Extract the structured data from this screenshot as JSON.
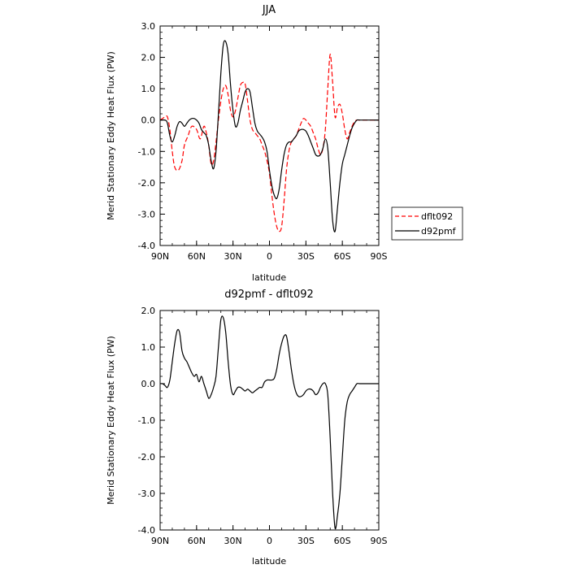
{
  "chart_data": [
    {
      "type": "line",
      "title": "JJA",
      "xlabel": "latitude",
      "ylabel": "Merid Stationary Eddy Heat Flux (PW)",
      "xlim": [
        90,
        -90
      ],
      "ylim": [
        -4.0,
        3.0
      ],
      "xticks": [
        {
          "v": 90,
          "label": "90N"
        },
        {
          "v": 60,
          "label": "60N"
        },
        {
          "v": 30,
          "label": "30N"
        },
        {
          "v": 0,
          "label": "0"
        },
        {
          "v": -30,
          "label": "30S"
        },
        {
          "v": -60,
          "label": "60S"
        },
        {
          "v": -90,
          "label": "90S"
        }
      ],
      "yticks": [
        {
          "v": 3.0,
          "label": "3.0"
        },
        {
          "v": 2.0,
          "label": "2.0"
        },
        {
          "v": 1.0,
          "label": "1.0"
        },
        {
          "v": 0.0,
          "label": "0.0"
        },
        {
          "v": -1.0,
          "label": "-1.0"
        },
        {
          "v": -2.0,
          "label": "-2.0"
        },
        {
          "v": -3.0,
          "label": "-3.0"
        },
        {
          "v": -4.0,
          "label": "-4.0"
        }
      ],
      "legend_position": "right",
      "series": [
        {
          "name": "dflt092",
          "color": "#ff0000",
          "dash": "dashed",
          "x": [
            90,
            86,
            84,
            82,
            80,
            78,
            75,
            72,
            70,
            67,
            64,
            60,
            57,
            54,
            52,
            50,
            48,
            46,
            44,
            42,
            40,
            38,
            36,
            34,
            32,
            30,
            28,
            26,
            24,
            22,
            20,
            18,
            16,
            14,
            12,
            10,
            8,
            6,
            4,
            2,
            0,
            -2,
            -4,
            -6,
            -8,
            -10,
            -12,
            -14,
            -16,
            -18,
            -20,
            -22,
            -24,
            -26,
            -28,
            -30,
            -32,
            -34,
            -36,
            -38,
            -40,
            -42,
            -44,
            -46,
            -48,
            -50,
            -52,
            -54,
            -56,
            -58,
            -60,
            -62,
            -64,
            -66,
            -68,
            -70,
            -72,
            -74,
            -76,
            -78,
            -80,
            -82,
            -84,
            -86,
            -88,
            -90
          ],
          "y": [
            0.0,
            0.1,
            0.1,
            -0.3,
            -1.0,
            -1.5,
            -1.6,
            -1.3,
            -0.8,
            -0.5,
            -0.2,
            -0.3,
            -0.6,
            -0.2,
            -0.4,
            -0.8,
            -1.4,
            -1.3,
            -0.7,
            0.0,
            0.6,
            1.0,
            1.1,
            0.8,
            0.3,
            0.1,
            0.3,
            0.7,
            1.1,
            1.2,
            1.15,
            0.6,
            0.0,
            -0.3,
            -0.4,
            -0.5,
            -0.6,
            -0.8,
            -1.0,
            -1.3,
            -1.7,
            -2.4,
            -3.0,
            -3.4,
            -3.55,
            -3.4,
            -2.6,
            -1.6,
            -1.0,
            -0.7,
            -0.6,
            -0.5,
            -0.3,
            -0.1,
            0.05,
            0.0,
            -0.1,
            -0.2,
            -0.4,
            -0.6,
            -0.9,
            -1.1,
            -0.9,
            -0.3,
            1.0,
            2.1,
            1.2,
            0.1,
            0.4,
            0.5,
            0.2,
            -0.3,
            -0.6,
            -0.4,
            -0.2,
            -0.05,
            0.0,
            0.0,
            0.0,
            0.0,
            0.0,
            0.0,
            0.0,
            0.0,
            0.0,
            0.0
          ]
        },
        {
          "name": "d92pmf",
          "color": "#000000",
          "dash": "solid",
          "x": [
            90,
            86,
            84,
            82,
            80,
            78,
            76,
            74,
            72,
            70,
            68,
            66,
            64,
            62,
            60,
            58,
            56,
            54,
            52,
            50,
            48,
            46,
            44,
            42,
            40,
            38,
            36,
            34,
            32,
            30,
            28,
            26,
            24,
            22,
            20,
            18,
            16,
            14,
            12,
            10,
            8,
            6,
            4,
            2,
            0,
            -2,
            -4,
            -6,
            -8,
            -10,
            -12,
            -14,
            -16,
            -18,
            -20,
            -22,
            -24,
            -26,
            -28,
            -30,
            -32,
            -34,
            -36,
            -38,
            -40,
            -42,
            -44,
            -46,
            -48,
            -50,
            -52,
            -54,
            -56,
            -58,
            -60,
            -62,
            -64,
            -66,
            -68,
            -70,
            -72,
            -74,
            -76,
            -78,
            -80,
            -82,
            -84,
            -86,
            -88,
            -90
          ],
          "y": [
            0.0,
            0.0,
            -0.1,
            -0.5,
            -0.7,
            -0.5,
            -0.2,
            -0.05,
            -0.1,
            -0.2,
            -0.1,
            0.0,
            0.05,
            0.05,
            0.0,
            -0.1,
            -0.3,
            -0.4,
            -0.5,
            -0.8,
            -1.3,
            -1.55,
            -1.0,
            0.2,
            1.5,
            2.4,
            2.5,
            2.1,
            1.1,
            0.3,
            -0.2,
            -0.1,
            0.3,
            0.6,
            0.9,
            1.0,
            0.9,
            0.4,
            -0.1,
            -0.35,
            -0.45,
            -0.55,
            -0.7,
            -1.0,
            -1.6,
            -2.1,
            -2.4,
            -2.5,
            -2.2,
            -1.6,
            -1.1,
            -0.8,
            -0.7,
            -0.7,
            -0.6,
            -0.5,
            -0.35,
            -0.3,
            -0.3,
            -0.35,
            -0.5,
            -0.7,
            -0.9,
            -1.1,
            -1.15,
            -1.1,
            -0.9,
            -0.6,
            -0.9,
            -2.0,
            -3.2,
            -3.55,
            -2.8,
            -2.0,
            -1.4,
            -1.1,
            -0.8,
            -0.5,
            -0.25,
            -0.1,
            0.0,
            0.0,
            0.0,
            0.0,
            0.0,
            0.0,
            0.0,
            0.0,
            0.0,
            0.0
          ]
        }
      ]
    },
    {
      "type": "line",
      "title": "d92pmf - dflt092",
      "xlabel": "latitude",
      "ylabel": "Merid Stationary Eddy Heat Flux (PW)",
      "xlim": [
        90,
        -90
      ],
      "ylim": [
        -4.0,
        2.0
      ],
      "xticks": [
        {
          "v": 90,
          "label": "90N"
        },
        {
          "v": 60,
          "label": "60N"
        },
        {
          "v": 30,
          "label": "30N"
        },
        {
          "v": 0,
          "label": "0"
        },
        {
          "v": -30,
          "label": "30S"
        },
        {
          "v": -60,
          "label": "60S"
        },
        {
          "v": -90,
          "label": "90S"
        }
      ],
      "yticks": [
        {
          "v": 2.0,
          "label": "2.0"
        },
        {
          "v": 1.0,
          "label": "1.0"
        },
        {
          "v": 0.0,
          "label": "0.0"
        },
        {
          "v": -1.0,
          "label": "-1.0"
        },
        {
          "v": -2.0,
          "label": "-2.0"
        },
        {
          "v": -3.0,
          "label": "-3.0"
        },
        {
          "v": -4.0,
          "label": "-4.0"
        }
      ],
      "series": [
        {
          "color": "#000000",
          "dash": "solid",
          "x": [
            90,
            88,
            86,
            84,
            82,
            80,
            78,
            76,
            74,
            72,
            70,
            68,
            66,
            64,
            62,
            60,
            58,
            56,
            54,
            52,
            50,
            48,
            46,
            44,
            42,
            40,
            38,
            36,
            34,
            32,
            30,
            28,
            26,
            24,
            22,
            20,
            18,
            16,
            14,
            12,
            10,
            8,
            6,
            4,
            2,
            0,
            -2,
            -4,
            -6,
            -8,
            -10,
            -12,
            -14,
            -16,
            -18,
            -20,
            -22,
            -24,
            -26,
            -28,
            -30,
            -32,
            -34,
            -36,
            -38,
            -40,
            -42,
            -44,
            -46,
            -48,
            -50,
            -52,
            -54,
            -56,
            -58,
            -60,
            -62,
            -64,
            -66,
            -68,
            -70,
            -72,
            -74,
            -76,
            -78,
            -80,
            -82,
            -84,
            -86,
            -88,
            -90
          ],
          "y": [
            0.0,
            0.0,
            -0.05,
            -0.1,
            0.1,
            0.6,
            1.1,
            1.45,
            1.4,
            0.9,
            0.7,
            0.6,
            0.45,
            0.3,
            0.2,
            0.25,
            0.05,
            0.2,
            0.0,
            -0.2,
            -0.4,
            -0.3,
            -0.1,
            0.2,
            1.0,
            1.75,
            1.8,
            1.4,
            0.6,
            -0.05,
            -0.3,
            -0.2,
            -0.1,
            -0.1,
            -0.15,
            -0.2,
            -0.15,
            -0.2,
            -0.25,
            -0.2,
            -0.15,
            -0.1,
            -0.1,
            0.05,
            0.1,
            0.1,
            0.1,
            0.15,
            0.4,
            0.8,
            1.1,
            1.3,
            1.3,
            0.9,
            0.4,
            0.0,
            -0.25,
            -0.35,
            -0.35,
            -0.3,
            -0.2,
            -0.15,
            -0.15,
            -0.2,
            -0.3,
            -0.25,
            -0.1,
            0.0,
            0.0,
            -0.3,
            -1.5,
            -3.0,
            -3.95,
            -3.6,
            -3.0,
            -2.0,
            -1.0,
            -0.5,
            -0.3,
            -0.2,
            -0.1,
            0.0,
            0.0,
            0.0,
            0.0,
            0.0,
            0.0,
            0.0,
            0.0,
            0.0,
            0.0
          ]
        }
      ]
    }
  ]
}
